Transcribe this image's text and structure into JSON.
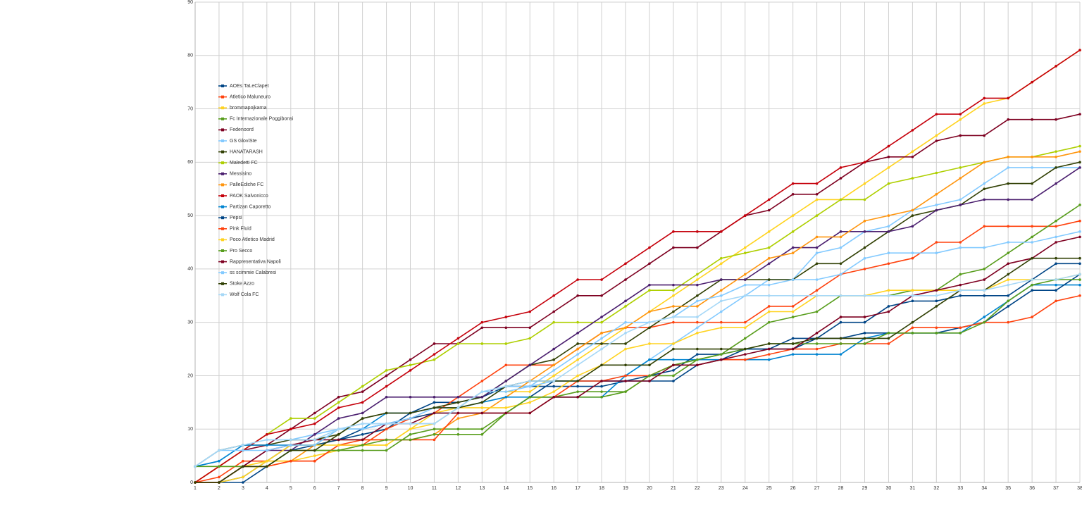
{
  "chart_data": {
    "type": "line",
    "legend": "upper-left",
    "grid": true,
    "x": [
      1,
      2,
      3,
      4,
      5,
      6,
      7,
      8,
      9,
      10,
      11,
      12,
      13,
      14,
      15,
      16,
      17,
      18,
      19,
      20,
      21,
      22,
      23,
      24,
      25,
      26,
      27,
      28,
      29,
      30,
      31,
      32,
      33,
      34,
      35,
      36,
      37,
      38
    ],
    "xlim": [
      1,
      38
    ],
    "xticks": [
      1,
      2,
      3,
      4,
      5,
      6,
      7,
      8,
      9,
      10,
      11,
      12,
      13,
      14,
      15,
      16,
      17,
      18,
      19,
      20,
      21,
      22,
      23,
      24,
      25,
      26,
      27,
      28,
      29,
      30,
      31,
      32,
      33,
      34,
      35,
      36,
      37,
      38
    ],
    "ylim": [
      0,
      90
    ],
    "yticks": [
      0,
      10,
      20,
      30,
      40,
      50,
      60,
      70,
      80,
      90
    ],
    "series": [
      {
        "name": "AOEs TaLeClapet",
        "color": "#004586",
        "values": [
          0,
          0,
          1,
          4,
          7,
          7,
          8,
          9,
          10,
          13,
          15,
          15,
          16,
          18,
          18,
          18,
          18,
          18,
          19,
          19,
          19,
          22,
          23,
          25,
          25,
          27,
          27,
          30,
          30,
          33,
          34,
          34,
          35,
          35,
          35,
          38,
          41,
          41
        ]
      },
      {
        "name": "Atletico Maluneuro",
        "color": "#ff420e",
        "values": [
          0,
          1,
          4,
          4,
          4,
          4,
          7,
          7,
          10,
          12,
          13,
          16,
          19,
          22,
          22,
          22,
          25,
          28,
          29,
          29,
          30,
          30,
          30,
          30,
          33,
          33,
          36,
          39,
          40,
          41,
          42,
          45,
          45,
          48,
          48,
          48,
          48,
          49
        ]
      },
      {
        "name": "brommapojkarna",
        "color": "#ffd320",
        "values": [
          0,
          3,
          3,
          4,
          4,
          5,
          6,
          7,
          7,
          10,
          11,
          14,
          17,
          17,
          17,
          20,
          23,
          26,
          29,
          32,
          35,
          38,
          41,
          44,
          47,
          50,
          53,
          53,
          56,
          59,
          62,
          65,
          68,
          71,
          72,
          75,
          78,
          81
        ]
      },
      {
        "name": "Fc Internazionale Poggibonsi",
        "color": "#579d1c",
        "values": [
          0,
          0,
          3,
          3,
          6,
          6,
          6,
          6,
          6,
          9,
          10,
          10,
          10,
          13,
          16,
          16,
          17,
          17,
          17,
          20,
          20,
          23,
          24,
          27,
          30,
          31,
          32,
          35,
          35,
          35,
          36,
          36,
          39,
          40,
          43,
          46,
          49,
          52
        ]
      },
      {
        "name": "Fedenoord",
        "color": "#7e0021",
        "values": [
          0,
          3,
          6,
          7,
          10,
          13,
          16,
          17,
          20,
          23,
          26,
          26,
          29,
          29,
          29,
          32,
          35,
          35,
          38,
          41,
          44,
          44,
          47,
          50,
          51,
          54,
          54,
          57,
          60,
          61,
          61,
          64,
          65,
          65,
          68,
          68,
          68,
          69
        ]
      },
      {
        "name": "GS GloviSte",
        "color": "#83caff",
        "values": [
          3,
          4,
          7,
          8,
          8,
          9,
          10,
          11,
          11,
          11,
          11,
          14,
          17,
          18,
          18,
          19,
          19,
          19,
          20,
          23,
          26,
          29,
          32,
          35,
          38,
          38,
          43,
          44,
          47,
          48,
          51,
          52,
          53,
          56,
          59,
          59,
          59,
          59
        ]
      },
      {
        "name": "HANATARASH",
        "color": "#314004",
        "values": [
          3,
          6,
          7,
          7,
          8,
          8,
          9,
          12,
          13,
          13,
          14,
          15,
          16,
          19,
          22,
          23,
          26,
          26,
          26,
          29,
          32,
          35,
          38,
          38,
          38,
          38,
          41,
          41,
          44,
          47,
          50,
          51,
          52,
          55,
          56,
          56,
          59,
          60
        ]
      },
      {
        "name": "Maledetti FC",
        "color": "#aecf00",
        "values": [
          0,
          3,
          6,
          9,
          12,
          12,
          15,
          18,
          21,
          22,
          23,
          26,
          26,
          26,
          27,
          30,
          30,
          30,
          33,
          36,
          36,
          39,
          42,
          43,
          44,
          47,
          50,
          53,
          53,
          56,
          57,
          58,
          59,
          60,
          61,
          61,
          62,
          63
        ]
      },
      {
        "name": "Messisino",
        "color": "#4b1f6f",
        "values": [
          0,
          0,
          3,
          6,
          6,
          9,
          12,
          13,
          16,
          16,
          16,
          16,
          16,
          19,
          22,
          25,
          28,
          31,
          34,
          37,
          37,
          37,
          38,
          38,
          41,
          44,
          44,
          47,
          47,
          47,
          48,
          51,
          52,
          53,
          53,
          53,
          56,
          59
        ]
      },
      {
        "name": "PalleEdiche FC",
        "color": "#ff950e",
        "values": [
          0,
          3,
          3,
          3,
          4,
          7,
          8,
          8,
          8,
          8,
          9,
          12,
          13,
          16,
          19,
          22,
          25,
          28,
          29,
          32,
          33,
          33,
          36,
          39,
          42,
          43,
          46,
          46,
          49,
          50,
          51,
          54,
          57,
          60,
          61,
          61,
          61,
          62
        ]
      },
      {
        "name": "PAOK Salvonicco",
        "color": "#c5000b",
        "values": [
          0,
          3,
          6,
          9,
          10,
          11,
          14,
          15,
          18,
          21,
          24,
          27,
          30,
          31,
          32,
          35,
          38,
          38,
          41,
          44,
          47,
          47,
          47,
          50,
          53,
          56,
          56,
          59,
          60,
          63,
          66,
          69,
          69,
          72,
          72,
          75,
          78,
          81
        ]
      },
      {
        "name": "Partizan Caporetto",
        "color": "#0084d1",
        "values": [
          3,
          4,
          7,
          7,
          7,
          7,
          10,
          10,
          13,
          13,
          14,
          14,
          15,
          16,
          16,
          16,
          16,
          16,
          20,
          23,
          23,
          23,
          23,
          23,
          23,
          24,
          24,
          24,
          27,
          28,
          28,
          28,
          28,
          31,
          34,
          37,
          37,
          37
        ]
      },
      {
        "name": "Pepsi",
        "color": "#004586",
        "values": [
          0,
          0,
          0,
          3,
          6,
          7,
          8,
          10,
          11,
          12,
          13,
          13,
          13,
          13,
          16,
          19,
          19,
          19,
          19,
          20,
          21,
          24,
          24,
          25,
          25,
          25,
          27,
          27,
          28,
          28,
          28,
          28,
          29,
          30,
          33,
          36,
          36,
          39
        ]
      },
      {
        "name": "Pink Fluid",
        "color": "#ff420e",
        "values": [
          0,
          0,
          3,
          3,
          4,
          4,
          7,
          8,
          8,
          8,
          8,
          13,
          13,
          13,
          13,
          16,
          19,
          19,
          20,
          20,
          22,
          22,
          23,
          23,
          24,
          25,
          25,
          26,
          26,
          26,
          29,
          29,
          29,
          30,
          30,
          31,
          34,
          35
        ]
      },
      {
        "name": "Poco Atletico Madrid",
        "color": "#ffd320",
        "values": [
          0,
          0,
          1,
          4,
          7,
          7,
          7,
          7,
          7,
          10,
          13,
          14,
          14,
          14,
          15,
          17,
          20,
          22,
          25,
          26,
          26,
          28,
          29,
          29,
          32,
          32,
          35,
          35,
          35,
          36,
          36,
          36,
          36,
          36,
          38,
          38,
          38,
          39
        ]
      },
      {
        "name": "Pro Secco",
        "color": "#579d1c",
        "values": [
          3,
          3,
          3,
          3,
          6,
          6,
          6,
          7,
          8,
          8,
          9,
          9,
          9,
          13,
          16,
          16,
          16,
          16,
          17,
          20,
          22,
          23,
          24,
          25,
          26,
          26,
          26,
          26,
          26,
          28,
          28,
          28,
          28,
          30,
          34,
          37,
          38,
          38
        ]
      },
      {
        "name": "Rappresentativa Napoli",
        "color": "#7e0021",
        "values": [
          0,
          0,
          3,
          6,
          7,
          8,
          8,
          8,
          11,
          11,
          13,
          13,
          13,
          13,
          13,
          16,
          16,
          19,
          19,
          19,
          22,
          22,
          23,
          24,
          25,
          25,
          28,
          31,
          31,
          32,
          35,
          36,
          37,
          38,
          41,
          42,
          45,
          46
        ]
      },
      {
        "name": "ss scimmie Calabresi",
        "color": "#83caff",
        "values": [
          3,
          6,
          6,
          6,
          7,
          7,
          10,
          10,
          11,
          12,
          14,
          14,
          17,
          17,
          18,
          21,
          24,
          27,
          30,
          30,
          31,
          34,
          35,
          37,
          37,
          38,
          38,
          39,
          42,
          43,
          43,
          43,
          44,
          44,
          45,
          45,
          46,
          47
        ]
      },
      {
        "name": "Stoke Azzo",
        "color": "#314004",
        "values": [
          0,
          0,
          3,
          3,
          6,
          6,
          9,
          12,
          13,
          13,
          14,
          14,
          15,
          18,
          19,
          19,
          19,
          22,
          22,
          22,
          25,
          25,
          25,
          25,
          26,
          26,
          27,
          27,
          27,
          27,
          30,
          33,
          36,
          36,
          39,
          42,
          42,
          42
        ]
      },
      {
        "name": "Wolf Cola FC",
        "color": "#a6d8f7",
        "values": [
          3,
          6,
          7,
          8,
          8,
          8,
          10,
          11,
          11,
          11,
          11,
          14,
          17,
          18,
          19,
          19,
          22,
          25,
          28,
          30,
          31,
          31,
          34,
          35,
          35,
          35,
          35,
          35,
          35,
          35,
          35,
          35,
          36,
          36,
          37,
          38,
          38,
          39
        ]
      }
    ]
  }
}
